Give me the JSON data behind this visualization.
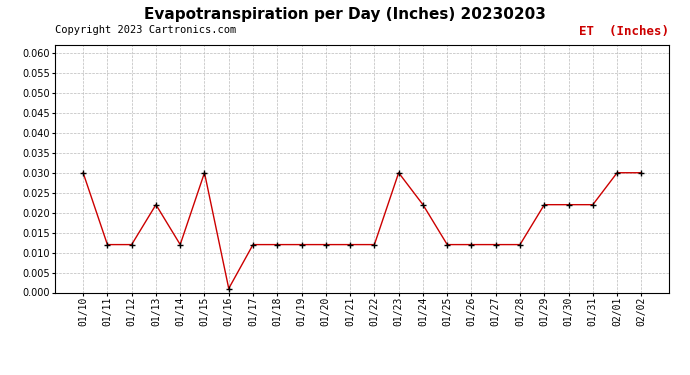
{
  "title": "Evapotranspiration per Day (Inches) 20230203",
  "copyright_text": "Copyright 2023 Cartronics.com",
  "legend_label": "ET  (Inches)",
  "x_labels": [
    "01/10",
    "01/11",
    "01/12",
    "01/13",
    "01/14",
    "01/15",
    "01/16",
    "01/17",
    "01/18",
    "01/19",
    "01/20",
    "01/21",
    "01/22",
    "01/23",
    "01/24",
    "01/25",
    "01/26",
    "01/27",
    "01/28",
    "01/29",
    "01/30",
    "01/31",
    "02/01",
    "02/02"
  ],
  "y_values": [
    0.03,
    0.012,
    0.012,
    0.022,
    0.012,
    0.03,
    0.001,
    0.012,
    0.012,
    0.012,
    0.012,
    0.012,
    0.012,
    0.03,
    0.022,
    0.012,
    0.012,
    0.012,
    0.012,
    0.022,
    0.022,
    0.022,
    0.03,
    0.03
  ],
  "line_color": "#cc0000",
  "marker_color": "#000000",
  "ylim_min": 0.0,
  "ylim_max": 0.062,
  "yticks": [
    0.0,
    0.005,
    0.01,
    0.015,
    0.02,
    0.025,
    0.03,
    0.035,
    0.04,
    0.045,
    0.05,
    0.055,
    0.06
  ],
  "background_color": "#ffffff",
  "grid_color": "#bbbbbb",
  "title_fontsize": 11,
  "legend_fontsize": 9,
  "copyright_fontsize": 7.5,
  "tick_fontsize": 7,
  "fig_width": 6.9,
  "fig_height": 3.75,
  "dpi": 100
}
